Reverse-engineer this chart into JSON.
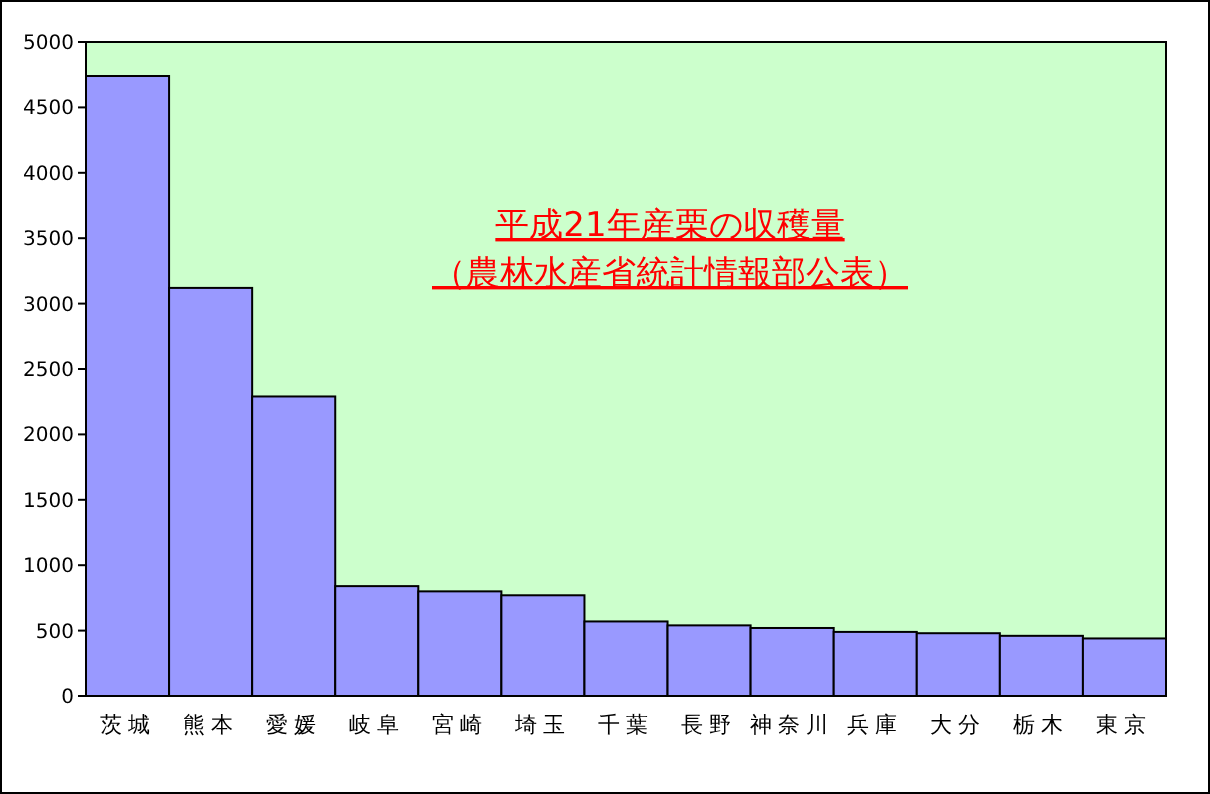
{
  "chart_data": {
    "type": "bar",
    "title": "平成21年産栗の収穫量",
    "subtitle": "（農林水産省統計情報部公表）",
    "categories": [
      "茨城",
      "熊本",
      "愛媛",
      "岐阜",
      "宮崎",
      "埼玉",
      "千葉",
      "長野",
      "神奈川",
      "兵庫",
      "大分",
      "栃木",
      "東京"
    ],
    "values": [
      4740,
      3120,
      2290,
      840,
      800,
      770,
      570,
      540,
      520,
      490,
      480,
      460,
      440
    ],
    "color": "#9999ff",
    "ylim": [
      0,
      5000
    ],
    "yticks": [
      0,
      500,
      1000,
      1500,
      2000,
      2500,
      3000,
      3500,
      4000,
      4500,
      5000
    ],
    "grid": false
  }
}
